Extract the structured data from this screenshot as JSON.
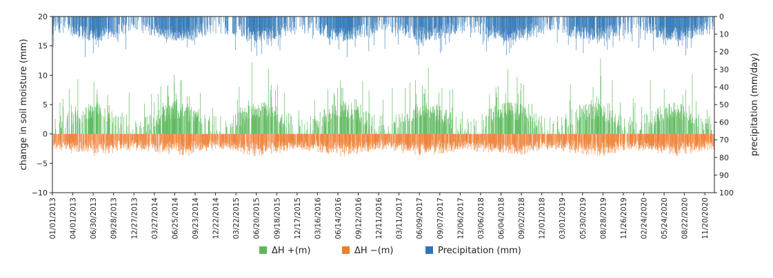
{
  "chart_data": {
    "type": "bar",
    "title": "",
    "ylabel": "change in soil moisture (mm)",
    "ylabel_right": "precipitation (mm/day)",
    "ylim_left": [
      -10,
      20
    ],
    "yticks_left": [
      -10,
      -5,
      0,
      5,
      10,
      15,
      20
    ],
    "ylim_right": [
      100,
      0
    ],
    "yticks_right": [
      0,
      10,
      20,
      30,
      40,
      50,
      60,
      70,
      80,
      90,
      100
    ],
    "right_axis_inverted": true,
    "grid": false,
    "x_range": [
      "2013-01-01",
      "2020-12-31"
    ],
    "x_tick_labels": [
      "01/01/2013",
      "04/01/2013",
      "06/30/2013",
      "09/28/2013",
      "12/27/2013",
      "03/27/2014",
      "06/25/2014",
      "09/23/2014",
      "12/22/2014",
      "03/22/2015",
      "06/20/2015",
      "09/18/2015",
      "12/17/2015",
      "03/16/2016",
      "06/14/2016",
      "09/12/2016",
      "12/11/2016",
      "03/11/2017",
      "06/09/2017",
      "09/07/2017",
      "12/06/2017",
      "03/06/2018",
      "06/04/2018",
      "09/02/2018",
      "12/01/2018",
      "03/01/2019",
      "05/30/2019",
      "08/28/2019",
      "11/26/2019",
      "02/24/2020",
      "05/24/2020",
      "08/22/2020",
      "11/20/2020"
    ],
    "legend_position": "bottom-center",
    "series": [
      {
        "name": "ΔH +(m)",
        "color": "#5cb85c",
        "axis": "left"
      },
      {
        "name": "ΔH −(m)",
        "color": "#ed7d31",
        "axis": "left"
      },
      {
        "name": "Precipitation (mm)",
        "color": "#2e75b6",
        "axis": "right"
      }
    ],
    "note_data": "Daily series estimated from the figure: ΔH+ typically 0–8 mm with peaks up to ~14 mm; ΔH− typically 0 to −4 mm; precipitation mostly 0–15 mm/day with peaks near 25 mm/day; drier periods around each December–February."
  }
}
